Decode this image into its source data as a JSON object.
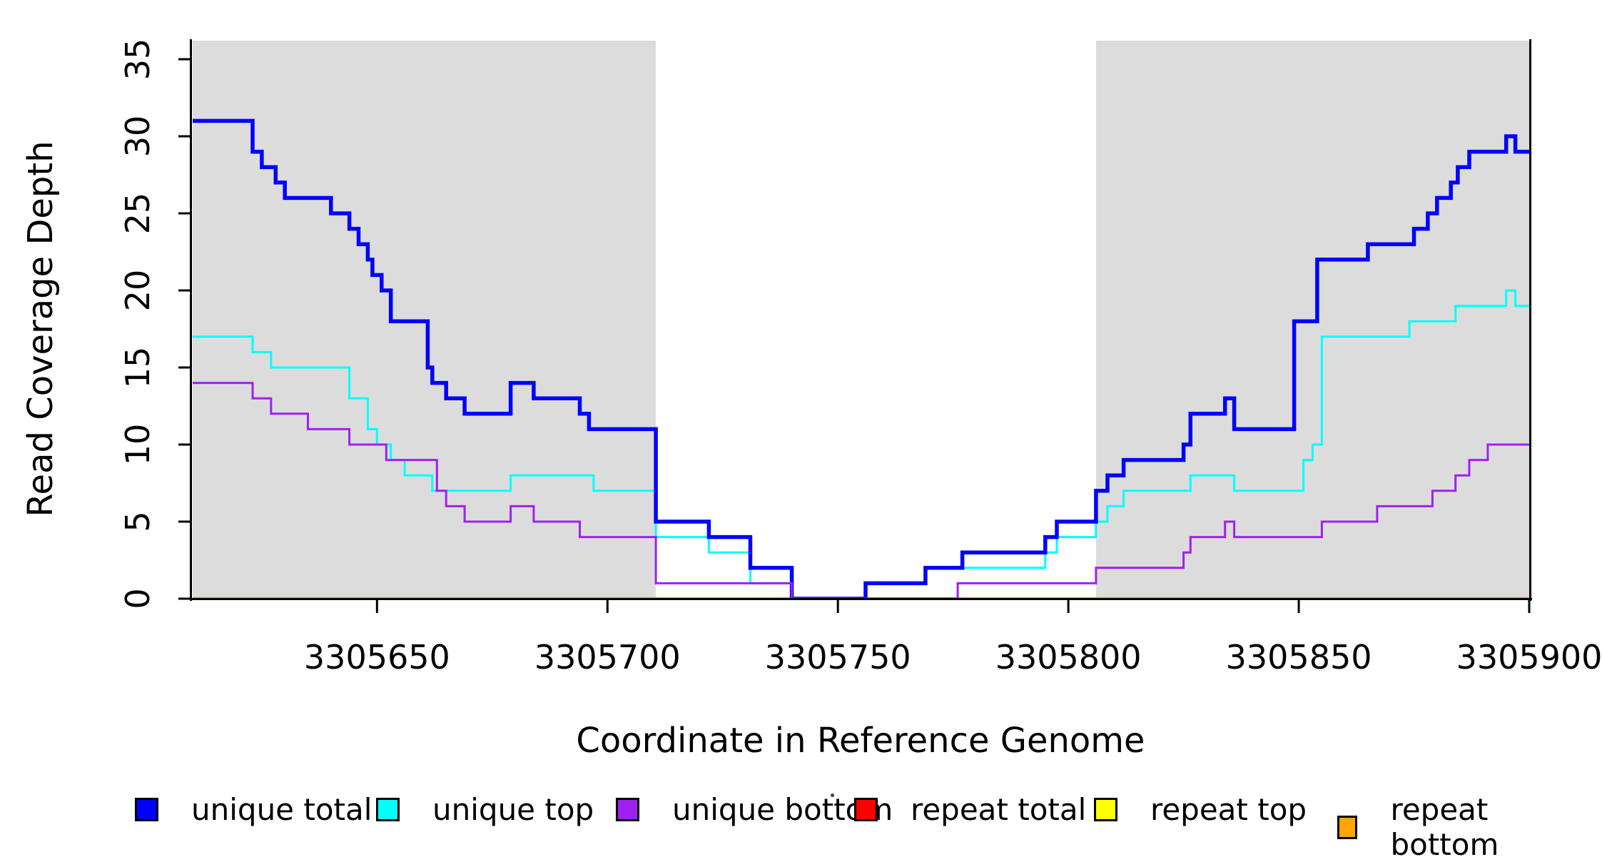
{
  "figure": {
    "background": "#ffffff",
    "shaded_band_color": "#dcdcdc",
    "axis_color": "#000000"
  },
  "y_axis": {
    "label": "Read Coverage Depth",
    "ticks": [
      0,
      5,
      10,
      15,
      20,
      25,
      30,
      35
    ],
    "range": [
      0,
      35
    ]
  },
  "x_axis": {
    "label": "Coordinate in Reference Genome",
    "ticks": [
      3305650,
      3305700,
      3305750,
      3305800,
      3305850,
      3305900
    ],
    "range": [
      3305610,
      3305900
    ]
  },
  "legend": [
    {
      "label": "unique total",
      "color": "#0000ff"
    },
    {
      "label": "unique top",
      "color": "#00ffff"
    },
    {
      "label": "unique bottom",
      "color": "#a020f0"
    },
    {
      "label": "repeat total",
      "color": "#ff0000"
    },
    {
      "label": "repeat top",
      "color": "#ffff00"
    },
    {
      "label": "repeat bottom",
      "color": "#ffa500"
    }
  ],
  "chart_data": {
    "type": "step-line",
    "xlabel": "Coordinate in Reference Genome",
    "ylabel": "Read Coverage Depth",
    "xlim": [
      3305610,
      3305900
    ],
    "ylim": [
      0,
      35
    ],
    "shaded_regions_x": [
      [
        3305610,
        3305710.5
      ],
      [
        3305806,
        3305900
      ]
    ],
    "series": [
      {
        "name": "unique total",
        "color": "#0000ff",
        "stroke_width": 5.5,
        "points": [
          [
            3305610,
            31
          ],
          [
            3305623,
            29
          ],
          [
            3305625,
            28
          ],
          [
            3305628,
            27
          ],
          [
            3305630,
            26
          ],
          [
            3305640,
            25
          ],
          [
            3305644,
            24
          ],
          [
            3305646,
            23
          ],
          [
            3305648,
            22
          ],
          [
            3305649,
            21
          ],
          [
            3305651,
            20
          ],
          [
            3305653,
            18
          ],
          [
            3305661,
            15
          ],
          [
            3305662,
            14
          ],
          [
            3305665,
            13
          ],
          [
            3305669,
            12
          ],
          [
            3305679,
            14
          ],
          [
            3305684,
            13
          ],
          [
            3305694,
            12
          ],
          [
            3305696,
            11
          ],
          [
            3305710.5,
            5
          ],
          [
            3305722,
            4
          ],
          [
            3305731,
            2
          ],
          [
            3305740,
            0
          ],
          [
            3305756,
            1
          ],
          [
            3305769,
            2
          ],
          [
            3305777,
            3
          ],
          [
            3305795,
            4
          ],
          [
            3305797.5,
            5
          ],
          [
            3305806,
            7
          ],
          [
            3305808.5,
            8
          ],
          [
            3305812,
            9
          ],
          [
            3305825,
            10
          ],
          [
            3305826.5,
            12
          ],
          [
            3305834,
            13
          ],
          [
            3305836,
            11
          ],
          [
            3305849,
            18
          ],
          [
            3305854,
            22
          ],
          [
            3305865,
            23
          ],
          [
            3305875,
            24
          ],
          [
            3305878,
            25
          ],
          [
            3305880,
            26
          ],
          [
            3305883,
            27
          ],
          [
            3305884.5,
            28
          ],
          [
            3305887,
            29
          ],
          [
            3305895,
            30
          ],
          [
            3305897,
            29
          ]
        ]
      },
      {
        "name": "unique top",
        "color": "#00ffff",
        "stroke_width": 3,
        "points": [
          [
            3305610,
            17
          ],
          [
            3305623,
            16
          ],
          [
            3305627,
            15
          ],
          [
            3305644,
            13
          ],
          [
            3305648,
            11
          ],
          [
            3305650,
            10
          ],
          [
            3305653,
            9
          ],
          [
            3305656,
            8
          ],
          [
            3305662,
            7
          ],
          [
            3305679,
            8
          ],
          [
            3305697,
            7
          ],
          [
            3305710.5,
            4
          ],
          [
            3305722,
            3
          ],
          [
            3305731,
            1
          ],
          [
            3305740,
            0
          ],
          [
            3305756,
            1
          ],
          [
            3305769,
            2
          ],
          [
            3305795,
            3
          ],
          [
            3305797.5,
            4
          ],
          [
            3305806,
            5
          ],
          [
            3305808.5,
            6
          ],
          [
            3305812,
            7
          ],
          [
            3305826.5,
            8
          ],
          [
            3305836,
            7
          ],
          [
            3305851,
            9
          ],
          [
            3305853,
            10
          ],
          [
            3305855,
            17
          ],
          [
            3305874,
            18
          ],
          [
            3305884,
            19
          ],
          [
            3305895,
            20
          ],
          [
            3305897,
            19
          ]
        ]
      },
      {
        "name": "unique bottom",
        "color": "#a020f0",
        "stroke_width": 3,
        "points": [
          [
            3305610,
            14
          ],
          [
            3305623,
            13
          ],
          [
            3305627,
            12
          ],
          [
            3305635,
            11
          ],
          [
            3305644,
            10
          ],
          [
            3305652,
            9
          ],
          [
            3305663,
            7
          ],
          [
            3305665,
            6
          ],
          [
            3305669,
            5
          ],
          [
            3305679,
            6
          ],
          [
            3305684,
            5
          ],
          [
            3305694,
            4
          ],
          [
            3305710.5,
            1
          ],
          [
            3305740,
            0
          ],
          [
            3305776,
            1
          ],
          [
            3305806,
            2
          ],
          [
            3305825,
            3
          ],
          [
            3305826.5,
            4
          ],
          [
            3305834,
            5
          ],
          [
            3305836,
            4
          ],
          [
            3305855,
            5
          ],
          [
            3305867,
            6
          ],
          [
            3305879,
            7
          ],
          [
            3305884,
            8
          ],
          [
            3305887,
            9
          ],
          [
            3305891,
            10
          ]
        ]
      },
      {
        "name": "repeat total",
        "color": "#ff0000",
        "stroke_width": 3,
        "points": [
          [
            3305610,
            0
          ]
        ]
      },
      {
        "name": "repeat top",
        "color": "#ffff00",
        "stroke_width": 3,
        "points": [
          [
            3305610,
            0
          ]
        ]
      },
      {
        "name": "repeat bottom",
        "color": "#ffa500",
        "stroke_width": 4.5,
        "points": [
          [
            3305610,
            0
          ]
        ]
      }
    ]
  }
}
